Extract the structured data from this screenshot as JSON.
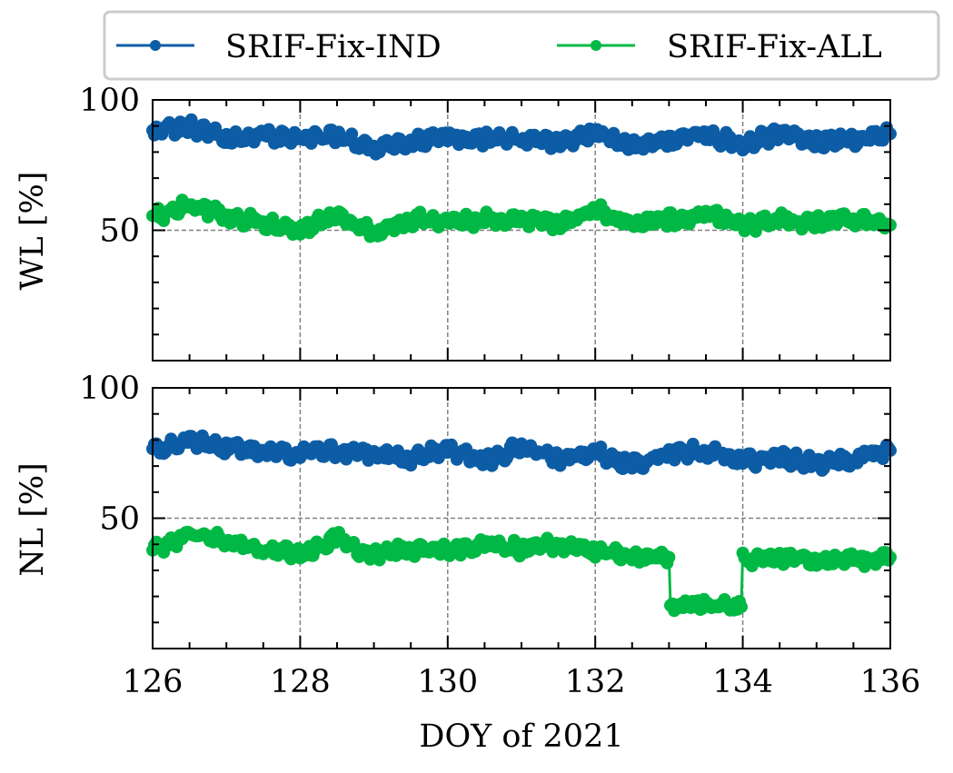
{
  "colors": {
    "ind": "#0C5DA5",
    "all": "#00B945",
    "grid": "#808080",
    "axes": "#000000"
  },
  "legend": {
    "placement": "top-center, outside above plots",
    "entries": [
      "SRIF-Fix-IND",
      "SRIF-Fix-ALL"
    ]
  },
  "chart_data": [
    {
      "type": "line",
      "panel": "top",
      "ylabel": "WL [%]",
      "xlabel": "",
      "xlim": [
        126,
        136
      ],
      "ylim": [
        0,
        100
      ],
      "yticks": [
        "50",
        "100"
      ],
      "grid": true,
      "marker": "circle",
      "series": [
        {
          "name": "SRIF-Fix-IND",
          "x": [
            126.0,
            126.5,
            127.0,
            127.5,
            128.0,
            128.5,
            129.0,
            129.5,
            130.0,
            130.5,
            131.0,
            131.5,
            132.0,
            132.5,
            133.0,
            133.5,
            134.0,
            134.5,
            135.0,
            135.5,
            136.0
          ],
          "values": [
            87,
            90,
            85,
            86,
            85,
            86,
            81,
            84,
            86,
            85,
            85,
            84,
            87,
            82,
            85,
            87,
            83,
            87,
            84,
            85,
            87
          ]
        },
        {
          "name": "SRIF-Fix-ALL",
          "x": [
            126.0,
            126.5,
            127.0,
            127.5,
            128.0,
            128.5,
            129.0,
            129.5,
            130.0,
            130.5,
            131.0,
            131.5,
            132.0,
            132.5,
            133.0,
            133.5,
            134.0,
            134.5,
            135.0,
            135.5,
            136.0
          ],
          "values": [
            55,
            60,
            55,
            53,
            50,
            56,
            49,
            54,
            54,
            54,
            54,
            53,
            58,
            52,
            54,
            56,
            52,
            54,
            53,
            54,
            52
          ]
        }
      ]
    },
    {
      "type": "line",
      "panel": "bottom",
      "ylabel": "NL [%]",
      "xlabel": "DOY of 2021",
      "xlim": [
        126,
        136
      ],
      "ylim": [
        0,
        100
      ],
      "yticks": [
        "50",
        "100"
      ],
      "xticks": [
        "126",
        "128",
        "130",
        "132",
        "134",
        "136"
      ],
      "grid": true,
      "marker": "circle",
      "series": [
        {
          "name": "SRIF-Fix-IND",
          "x": [
            126.0,
            126.5,
            127.0,
            127.5,
            128.0,
            128.5,
            129.0,
            129.5,
            130.0,
            130.5,
            131.0,
            131.5,
            132.0,
            132.5,
            133.0,
            133.5,
            134.0,
            134.5,
            135.0,
            135.5,
            136.0
          ],
          "values": [
            76,
            80,
            77,
            76,
            75,
            76,
            74,
            73,
            76,
            72,
            77,
            73,
            75,
            70,
            75,
            76,
            72,
            73,
            71,
            73,
            76
          ]
        },
        {
          "name": "SRIF-Fix-ALL",
          "x": [
            126.0,
            126.5,
            127.0,
            127.5,
            128.0,
            128.5,
            129.0,
            129.5,
            130.0,
            130.5,
            131.0,
            131.5,
            132.0,
            132.5,
            133.0,
            133.02,
            133.5,
            133.98,
            134.0,
            134.5,
            135.0,
            135.5,
            136.0
          ],
          "values": [
            38,
            44,
            41,
            38,
            36,
            42,
            36,
            38,
            38,
            40,
            38,
            40,
            37,
            35,
            35,
            17,
            17,
            16,
            34,
            35,
            34,
            34,
            35
          ]
        }
      ]
    }
  ]
}
